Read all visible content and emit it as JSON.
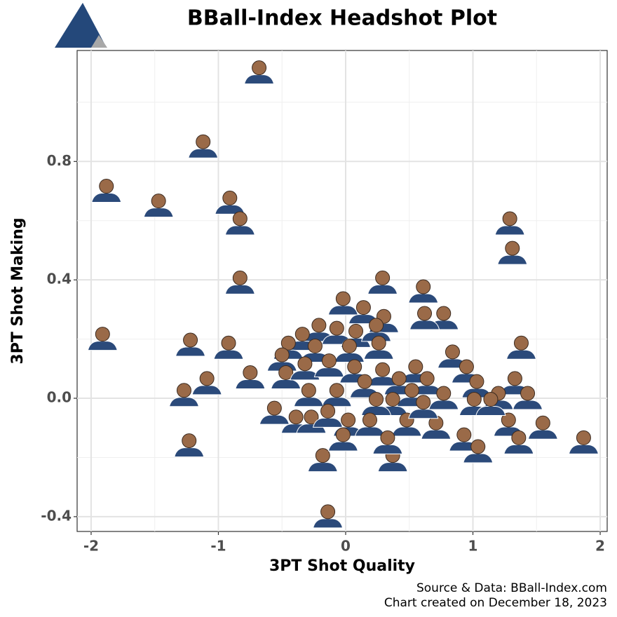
{
  "chart_data": {
    "type": "scatter",
    "title": "BBall-Index Headshot Plot",
    "x_label": "3PT Shot Quality",
    "y_label": "3PT Shot Making",
    "source": [
      "Source & Data: BBall-Index.com",
      "Chart created on December 18, 2023"
    ],
    "color": "#2b4a7a",
    "x": [
      -0.68,
      -1.12,
      -1.88,
      -1.47,
      -0.91,
      -0.83,
      -0.83,
      -1.91,
      1.29,
      1.31,
      0.29,
      0.61,
      -0.02,
      0.77,
      0.62,
      0.14,
      0.3,
      -0.21,
      1.38,
      -1.22,
      -0.92,
      -0.34,
      -0.45,
      -0.07,
      0.08,
      0.24,
      0.26,
      -0.24,
      -0.5,
      -0.75,
      -1.09,
      -1.27,
      -1.23,
      0.84,
      0.95,
      0.55,
      0.29,
      0.03,
      -0.47,
      -0.32,
      -0.13,
      0.07,
      0.15,
      0.42,
      0.64,
      1.03,
      1.33,
      1.43,
      1.2,
      1.01,
      0.77,
      0.52,
      0.37,
      0.24,
      -0.07,
      -0.29,
      -0.56,
      -0.39,
      -0.27,
      -0.14,
      0.02,
      0.19,
      0.48,
      0.71,
      0.93,
      1.04,
      1.28,
      1.36,
      1.55,
      1.87,
      -0.18,
      0.37,
      -0.14,
      -0.02,
      0.33,
      0.61,
      1.14
    ],
    "values": [
      1.1,
      0.85,
      0.7,
      0.65,
      0.66,
      0.59,
      0.39,
      0.2,
      0.59,
      0.49,
      0.39,
      0.36,
      0.32,
      0.27,
      0.27,
      0.29,
      0.26,
      0.23,
      0.17,
      0.18,
      0.17,
      0.2,
      0.17,
      0.22,
      0.21,
      0.23,
      0.17,
      0.16,
      0.13,
      0.07,
      0.05,
      0.01,
      -0.16,
      0.14,
      0.09,
      0.09,
      0.08,
      0.16,
      0.07,
      0.1,
      0.11,
      0.09,
      0.04,
      0.05,
      0.05,
      0.04,
      0.05,
      0.0,
      0.0,
      -0.02,
      0.0,
      0.01,
      -0.02,
      -0.02,
      0.01,
      0.01,
      -0.05,
      -0.08,
      -0.08,
      -0.06,
      -0.09,
      -0.09,
      -0.09,
      -0.1,
      -0.14,
      -0.18,
      -0.09,
      -0.15,
      -0.1,
      -0.15,
      -0.21,
      -0.21,
      -0.4,
      -0.14,
      -0.15,
      -0.03,
      -0.02
    ],
    "xlim": [
      -2.11,
      2.055
    ],
    "ylim": [
      -0.45,
      1.175
    ],
    "xticks": [
      -2,
      -1,
      0,
      1,
      2
    ],
    "yticks": [
      {
        "value": -0.4,
        "label": "-0.4"
      },
      {
        "value": 0,
        "label": "0.0"
      },
      {
        "value": 0.4,
        "label": "0.4"
      },
      {
        "value": 0.8,
        "label": "0.8"
      }
    ],
    "xminorticks": [
      -1.5,
      -0.5,
      0.5,
      1.5
    ],
    "yminorticks": [
      -0.2,
      0.2,
      0.6,
      1.0
    ],
    "grid": true
  }
}
